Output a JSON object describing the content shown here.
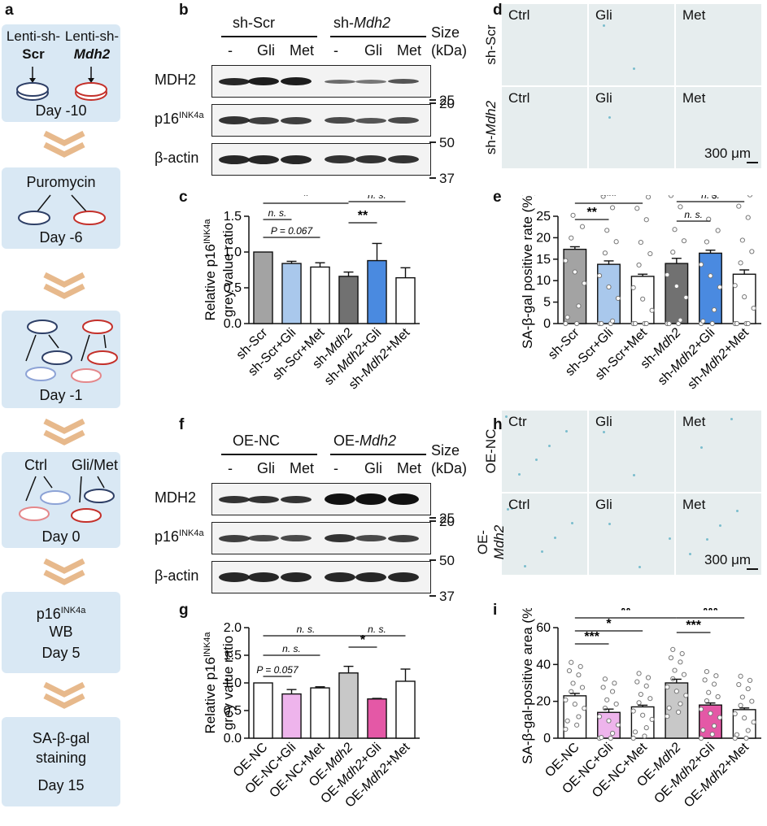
{
  "panels": {
    "a": "a",
    "b": "b",
    "c": "c",
    "d": "d",
    "e": "e",
    "f": "f",
    "g": "g",
    "h": "h",
    "i": "i"
  },
  "flow": {
    "lenti_scr_1": "Lenti-sh-",
    "lenti_scr_2": "Scr",
    "lenti_mdh2_1": "Lenti-sh-",
    "lenti_mdh2_2": "Mdh2",
    "day_m10": "Day -10",
    "puromycin": "Puromycin",
    "day_m6": "Day -6",
    "day_m1": "Day -1",
    "ctrl": "Ctrl",
    "glimet": "Gli/Met",
    "day_0": "Day 0",
    "p16": "p16",
    "p16_sup": "INK4a",
    "wb": "WB",
    "day_5": "Day 5",
    "sagal_1": "SA-β-gal",
    "sagal_2": "staining",
    "day_15": "Day 15"
  },
  "blot_b": {
    "group1": "sh-Scr",
    "group2_pre": "sh-",
    "group2_it": "Mdh2",
    "lanes": [
      "-",
      "Gli",
      "Met",
      "-",
      "Gli",
      "Met"
    ],
    "size_1": "Size",
    "size_2": "(kDa)",
    "rows": [
      "MDH2",
      "p16",
      "β-actin"
    ],
    "p16_sup": "INK4a",
    "markers": [
      "25",
      "20",
      "50",
      "37"
    ]
  },
  "blot_f": {
    "group1": "OE-NC",
    "group2_pre": "OE-",
    "group2_it": "Mdh2",
    "lanes": [
      "-",
      "Gli",
      "Met",
      "-",
      "Gli",
      "Met"
    ],
    "size_1": "Size",
    "size_2": "(kDa)",
    "rows": [
      "MDH2",
      "p16",
      "β-actin"
    ],
    "p16_sup": "INK4a",
    "markers": [
      "25",
      "20",
      "50",
      "37"
    ]
  },
  "micro_d": {
    "row_labels": [
      "sh-Scr",
      "sh-Mdh2"
    ],
    "top": [
      "Ctrl",
      "Gli",
      "Met"
    ],
    "bottom": [
      "Ctrl",
      "Gli",
      "Met"
    ],
    "scale": "300 μm"
  },
  "micro_h": {
    "row_labels": [
      "OE-NC",
      "OE-Mdh2"
    ],
    "top": [
      "Ctr",
      "Gli",
      "Met"
    ],
    "bottom": [
      "Ctrl",
      "Gli",
      "Met"
    ],
    "scale": "300 μm"
  },
  "chart_data": [
    {
      "panel": "c",
      "type": "bar",
      "categories": [
        "sh-Scr",
        "sh-Scr+Gli",
        "sh-Scr+Met",
        "sh-Mdh2",
        "sh-Mdh2+Gli",
        "sh-Mdh2+Met"
      ],
      "values": [
        1.0,
        0.84,
        0.79,
        0.66,
        0.88,
        0.64
      ],
      "errors": [
        0.0,
        0.03,
        0.06,
        0.06,
        0.24,
        0.14
      ],
      "ylabel": "Relative p16INK4a grey value ratio",
      "ylim": [
        0,
        1.5
      ],
      "yticks": [
        "0.0",
        "0.5",
        "1.0",
        "1.5"
      ],
      "annotations": [
        "P = 0.067",
        "*",
        "**",
        "n. s.",
        "n. s."
      ]
    },
    {
      "panel": "e",
      "type": "bar",
      "categories": [
        "sh-Scr",
        "sh-Scr+Gli",
        "sh-Scr+Met",
        "sh-Mdh2",
        "sh-Mdh2+Gli",
        "sh-Mdh2+Met"
      ],
      "values": [
        17.3,
        13.8,
        11.0,
        14.0,
        16.4,
        11.5
      ],
      "errors": [
        0.6,
        0.8,
        0.5,
        1.2,
        0.7,
        1.0
      ],
      "ylabel": "SA-β-gal positive rate (%)",
      "ylim": [
        0,
        25
      ],
      "yticks": [
        "0",
        "5",
        "10",
        "15",
        "20",
        "25"
      ],
      "annotations": [
        "**",
        "***",
        "*",
        "n. s.",
        "n. s."
      ]
    },
    {
      "panel": "g",
      "type": "bar",
      "categories": [
        "OE-NC",
        "OE-NC+Gli",
        "OE-NC+Met",
        "OE-Mdh2",
        "OE-Mdh2+Gli",
        "OE-Mdh2+Met"
      ],
      "values": [
        1.0,
        0.8,
        0.91,
        1.18,
        0.71,
        1.03
      ],
      "errors": [
        0.0,
        0.08,
        0.02,
        0.12,
        0.01,
        0.22
      ],
      "ylabel": "Relative p16INK4a grey value ratio",
      "ylim": [
        0,
        2.0
      ],
      "yticks": [
        "0.0",
        "0.5",
        "1.0",
        "1.5",
        "2.0"
      ],
      "annotations": [
        "P = 0.057",
        "n. s.",
        "n. s.",
        "*",
        "n. s."
      ]
    },
    {
      "panel": "i",
      "type": "bar",
      "categories": [
        "OE-NC",
        "OE-NC+Gli",
        "OE-NC+Met",
        "OE-Mdh2",
        "OE-Mdh2+Gli",
        "OE-Mdh2+Met"
      ],
      "values": [
        23,
        14,
        17,
        30,
        18,
        15.5
      ],
      "errors": [
        1.3,
        1.8,
        0.9,
        2.0,
        1.1,
        0.9
      ],
      "ylabel": "SA-β-gal-positive area (%)",
      "ylim": [
        0,
        60
      ],
      "yticks": [
        "0",
        "20",
        "40",
        "60"
      ],
      "annotations": [
        "***",
        "*",
        "**",
        "***",
        "***"
      ]
    }
  ],
  "colors": {
    "step_bg": "#d9e8f4",
    "chev": "#e7b98c",
    "c_bars": [
      "#a3a3a3",
      "#a9c8ec",
      "#ffffff",
      "#717171",
      "#4a8ae0",
      "#ffffff"
    ],
    "g_bars": [
      "#ffffff",
      "#eeb4ec",
      "#ffffff",
      "#c8c8c8",
      "#e458a6",
      "#ffffff"
    ]
  }
}
